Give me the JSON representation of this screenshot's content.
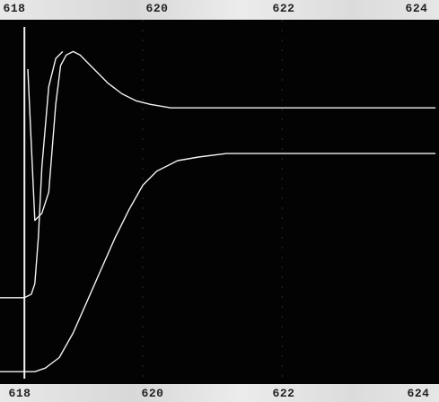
{
  "chart_data": {
    "type": "line",
    "title": "",
    "xlabel": "",
    "ylabel": "",
    "xlim": [
      617.95,
      624.25
    ],
    "ylim": [
      0,
      100
    ],
    "grid": false,
    "background": "#030303",
    "line_color": "#f2f2f2",
    "x_ticks": [
      "618",
      "620",
      "622",
      "624"
    ],
    "series": [
      {
        "x": [
          618.35,
          618.45,
          618.55,
          618.65,
          618.75,
          618.82,
          618.9,
          619.0,
          619.1,
          619.2,
          619.35,
          619.5,
          619.7,
          619.9,
          620.1,
          620.4,
          620.8,
          621.5,
          622.5,
          623.5,
          624.2
        ],
        "y": [
          88,
          45,
          47,
          53,
          78,
          89,
          92,
          93,
          92,
          90,
          87,
          84,
          81,
          79,
          78,
          77,
          77,
          77,
          77,
          77,
          77
        ]
      },
      {
        "x": [
          617.95,
          618.2,
          618.3,
          618.4,
          618.45,
          618.5,
          618.55,
          618.65,
          618.75,
          618.85
        ],
        "y": [
          23,
          23,
          23,
          24,
          27,
          40,
          60,
          83,
          91,
          93
        ]
      },
      {
        "x": [
          617.95,
          618.3,
          618.45,
          618.6,
          618.8,
          619.0,
          619.2,
          619.4,
          619.6,
          619.8,
          620.0,
          620.2,
          620.5,
          620.8,
          621.2,
          622.0,
          623.0,
          624.2
        ],
        "y": [
          2,
          2,
          2,
          3,
          6,
          13,
          22,
          31,
          40,
          48,
          55,
          59,
          62,
          63,
          64,
          64,
          64,
          64
        ]
      },
      {
        "x": [
          618.3,
          618.3
        ],
        "y": [
          0,
          100
        ]
      }
    ]
  }
}
